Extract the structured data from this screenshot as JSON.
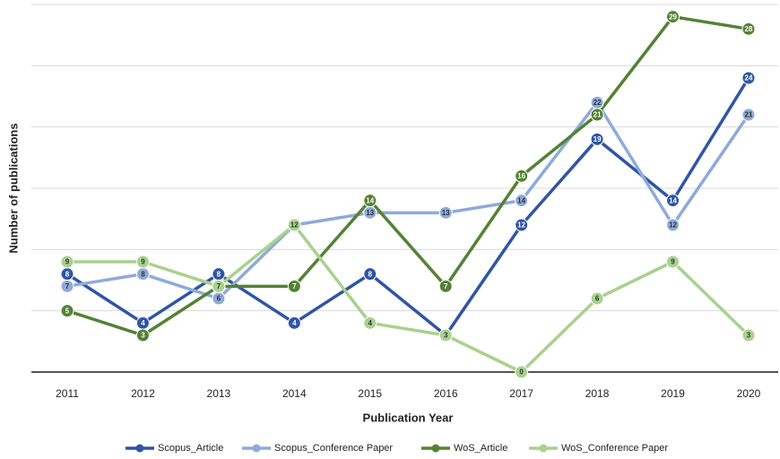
{
  "chart_data": {
    "type": "line",
    "x_label": "Publication Year",
    "y_label": "Number of publications",
    "categories": [
      "2011",
      "2012",
      "2013",
      "2014",
      "2015",
      "2016",
      "2017",
      "2018",
      "2019",
      "2020"
    ],
    "series": [
      {
        "name": "Scopus_Article",
        "color": "#2f55a4",
        "values": [
          8,
          4,
          8,
          4,
          8,
          3,
          12,
          19,
          14,
          24
        ]
      },
      {
        "name": "Scopus_Conference Paper",
        "color": "#8eaadb",
        "values": [
          7,
          8,
          6,
          12,
          13,
          13,
          14,
          22,
          12,
          21
        ]
      },
      {
        "name": "WoS_Article",
        "color": "#548235",
        "values": [
          5,
          3,
          7,
          7,
          14,
          7,
          16,
          21,
          29,
          28
        ]
      },
      {
        "name": "WoS_Conference Paper",
        "color": "#a9d18e",
        "values": [
          9,
          9,
          7,
          12,
          4,
          3,
          0,
          6,
          9,
          3
        ]
      }
    ],
    "ylim": [
      0,
      30
    ],
    "yticks": [
      0,
      5,
      10,
      15,
      20,
      25,
      30
    ],
    "grid": true,
    "legend": "bottom"
  }
}
